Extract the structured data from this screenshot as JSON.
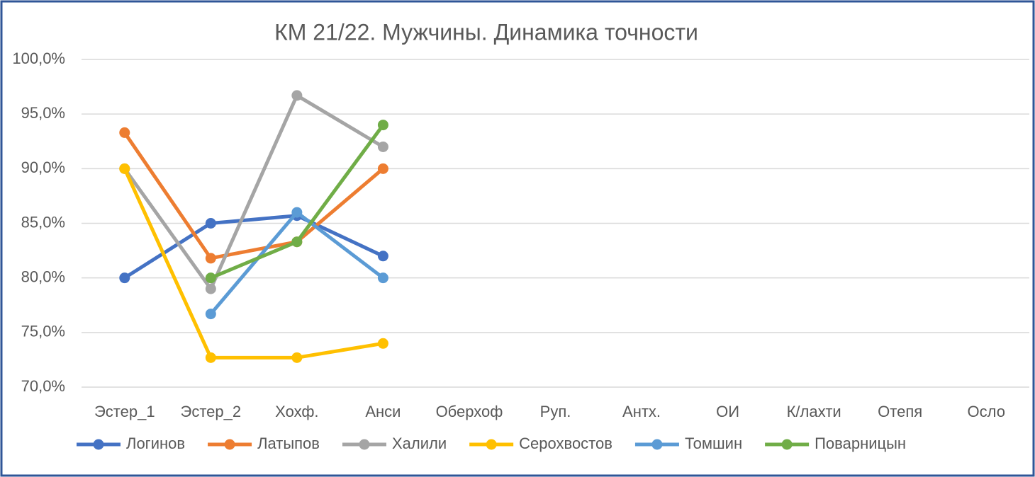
{
  "chart_data": {
    "type": "line",
    "title": "КМ 21/22. Мужчины. Динамика точности",
    "categories": [
      "Эстер_1",
      "Эстер_2",
      "Хохф.",
      "Анси",
      "Оберхоф",
      "Руп.",
      "Антх.",
      "ОИ",
      "К/лахти",
      "Отепя",
      "Осло"
    ],
    "series": [
      {
        "name": "Логинов",
        "color": "#4472c4",
        "values": [
          80,
          85,
          85.7,
          82,
          null,
          null,
          null,
          null,
          null,
          null,
          null
        ]
      },
      {
        "name": "Латыпов",
        "color": "#ed7d31",
        "values": [
          93.3,
          81.8,
          83.3,
          90,
          null,
          null,
          null,
          null,
          null,
          null,
          null
        ]
      },
      {
        "name": "Халили",
        "color": "#a5a5a5",
        "values": [
          90,
          79,
          96.7,
          92,
          null,
          null,
          null,
          null,
          null,
          null,
          null
        ]
      },
      {
        "name": "Серохвостов",
        "color": "#ffc000",
        "values": [
          90,
          72.7,
          72.7,
          74,
          null,
          null,
          null,
          null,
          null,
          null,
          null
        ]
      },
      {
        "name": "Томшин",
        "color": "#5b9bd5",
        "values": [
          null,
          76.7,
          86,
          80,
          null,
          null,
          null,
          null,
          null,
          null,
          null
        ]
      },
      {
        "name": "Поварницын",
        "color": "#70ad47",
        "values": [
          null,
          80,
          83.3,
          94,
          null,
          null,
          null,
          null,
          null,
          null,
          null
        ]
      }
    ],
    "ylim": [
      70,
      100
    ],
    "yticks": [
      {
        "value": 70,
        "label": "70,0%"
      },
      {
        "value": 75,
        "label": "75,0%"
      },
      {
        "value": 80,
        "label": "80,0%"
      },
      {
        "value": 85,
        "label": "85,0%"
      },
      {
        "value": 90,
        "label": "90,0%"
      },
      {
        "value": 95,
        "label": "95,0%"
      },
      {
        "value": 100,
        "label": "100,0%"
      }
    ],
    "grid": true,
    "legend": "bottom"
  }
}
